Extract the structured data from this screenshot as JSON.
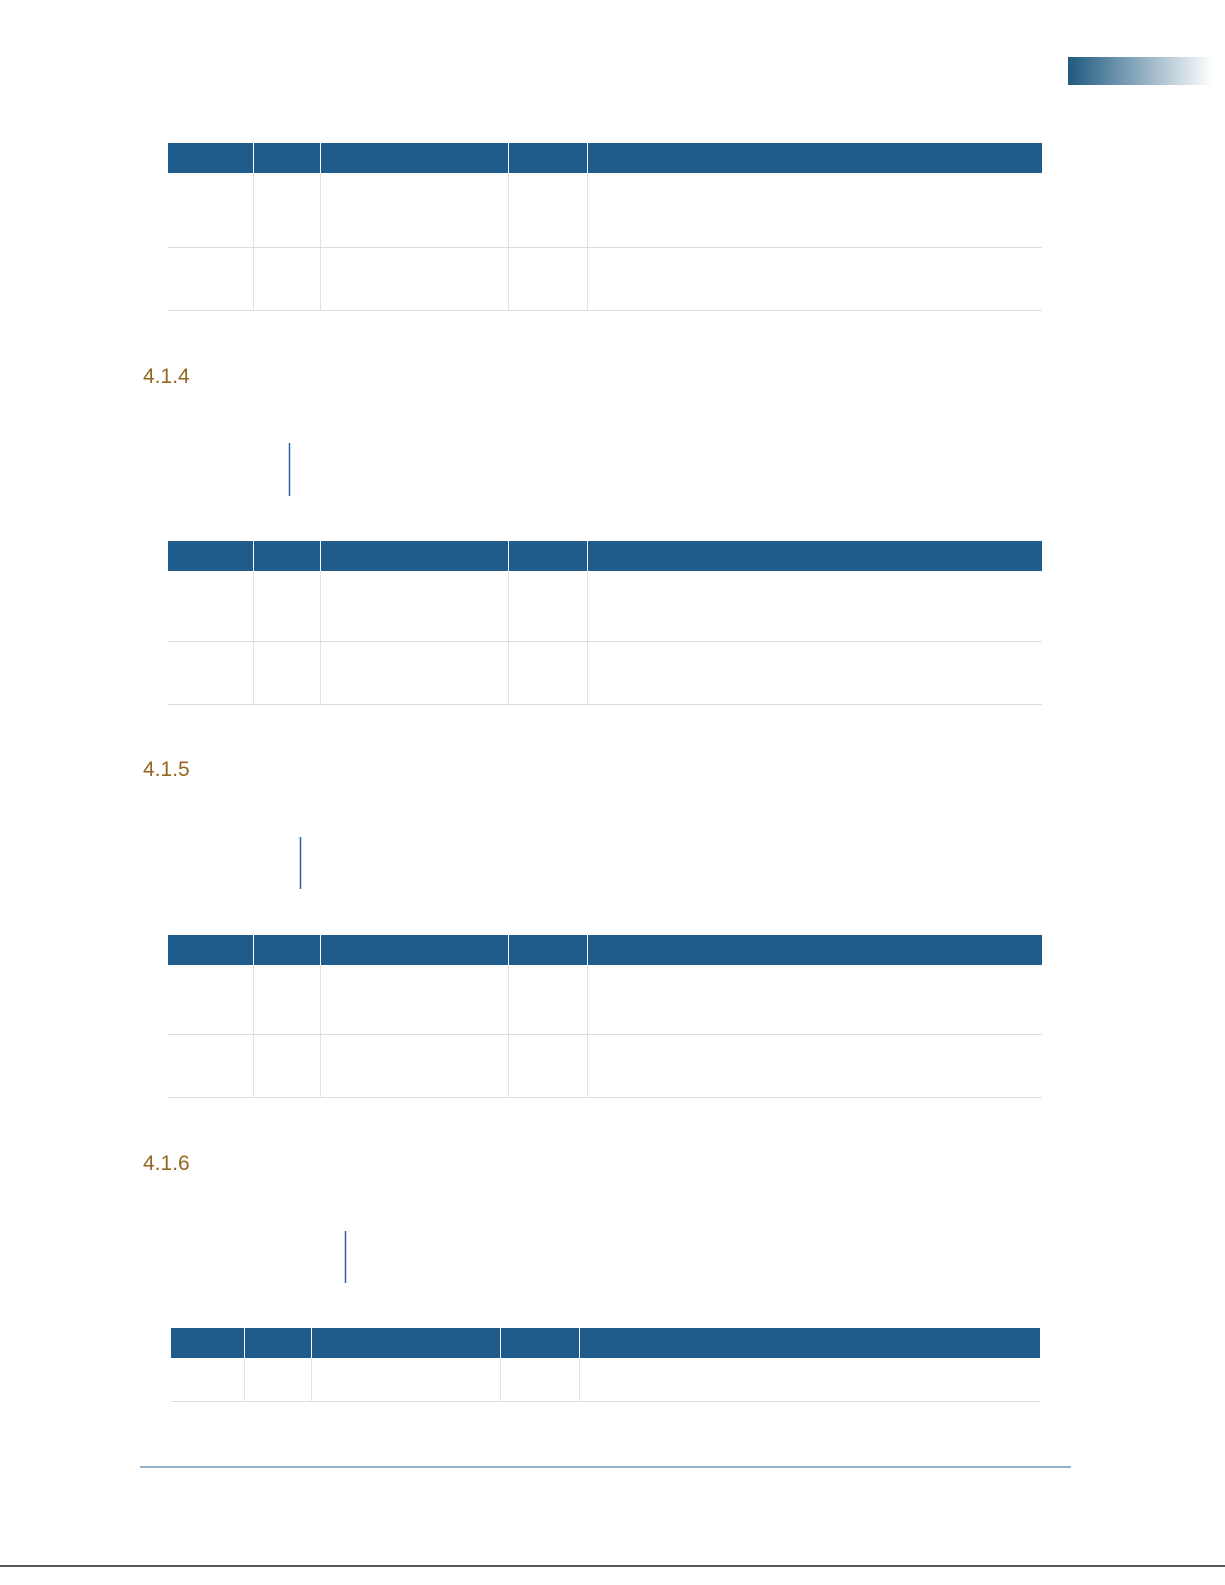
{
  "headings": [
    "4.1.4",
    "4.1.5",
    "4.1.6"
  ]
}
